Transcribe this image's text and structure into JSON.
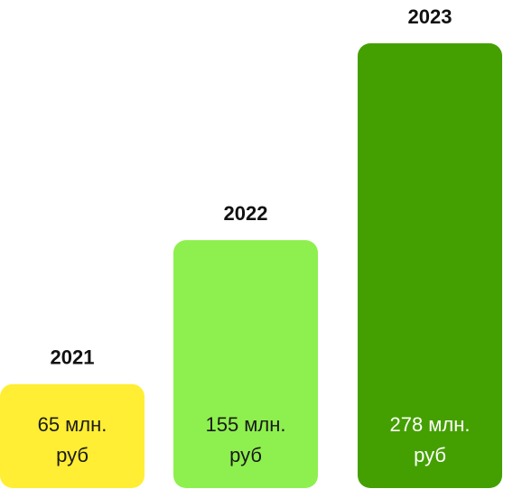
{
  "chart_data": {
    "type": "bar",
    "categories": [
      "2021",
      "2022",
      "2023"
    ],
    "values": [
      65,
      155,
      278
    ],
    "value_labels": [
      [
        "65 млн.",
        "руб"
      ],
      [
        "155 млн.",
        "руб"
      ],
      [
        "278 млн.",
        "руб"
      ]
    ],
    "bar_colors": [
      "#FFEE33",
      "#8EF04E",
      "#44A000"
    ],
    "value_label_colors": [
      "#1A1A1A",
      "#1A1A1A",
      "#FFFFFF"
    ],
    "title": "",
    "xlabel": "",
    "ylabel": "",
    "grid": false,
    "legend": "none"
  }
}
